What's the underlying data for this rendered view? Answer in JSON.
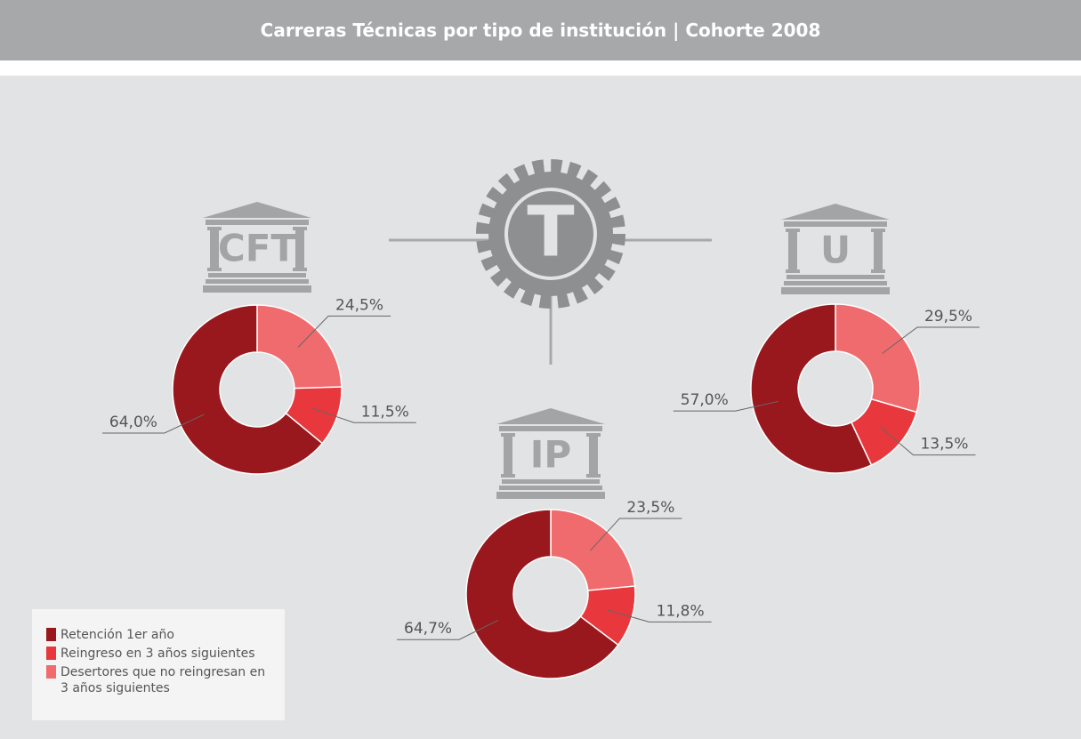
{
  "title": "Carreras Técnicas por tipo de institución | Cohorte 2008",
  "center_label": "T",
  "legend": {
    "labels": [
      "Retención 1er año",
      "Reingreso en 3 años siguientes",
      "Desertores que no reingresan en 3 años siguientes"
    ],
    "colors": [
      "#99181d",
      "#e8383d",
      "#f06b6e"
    ]
  },
  "chart_data": [
    {
      "type": "pie",
      "title": "CFT",
      "values": [
        64.0,
        11.5,
        24.5
      ],
      "value_labels": [
        "64,0%",
        "11,5%",
        "24,5%"
      ]
    },
    {
      "type": "pie",
      "title": "IP",
      "values": [
        64.7,
        11.8,
        23.5
      ],
      "value_labels": [
        "64,7%",
        "11,8%",
        "23,5%"
      ]
    },
    {
      "type": "pie",
      "title": "U",
      "values": [
        57.0,
        13.5,
        29.5
      ],
      "value_labels": [
        "57,0%",
        "13,5%",
        "29,5%"
      ]
    }
  ]
}
